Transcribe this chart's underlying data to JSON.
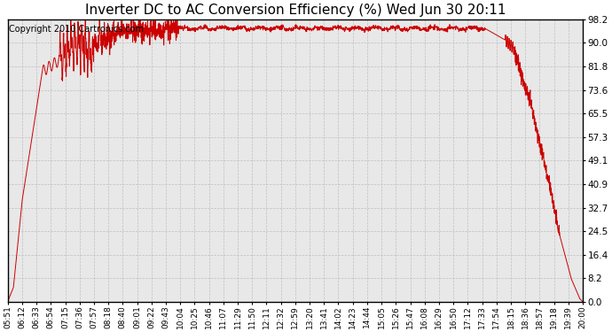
{
  "title": "Inverter DC to AC Conversion Efficiency (%) Wed Jun 30 20:11",
  "copyright": "Copyright 2010 Cartronics.com",
  "line_color": "#cc0000",
  "bg_color": "#ffffff",
  "plot_bg_color": "#e8e8e8",
  "grid_color": "#aaaaaa",
  "yticks": [
    0.0,
    8.2,
    16.4,
    24.5,
    32.7,
    40.9,
    49.1,
    57.3,
    65.5,
    73.6,
    81.8,
    90.0,
    98.2
  ],
  "ylim": [
    0.0,
    98.2
  ],
  "xtick_labels": [
    "05:51",
    "06:12",
    "06:33",
    "06:54",
    "07:15",
    "07:36",
    "07:57",
    "08:18",
    "08:40",
    "09:01",
    "09:22",
    "09:43",
    "10:04",
    "10:25",
    "10:46",
    "11:07",
    "11:29",
    "11:50",
    "12:11",
    "12:32",
    "12:59",
    "13:20",
    "13:41",
    "14:02",
    "14:23",
    "14:44",
    "15:05",
    "15:26",
    "15:47",
    "16:08",
    "16:29",
    "16:50",
    "17:12",
    "17:33",
    "17:54",
    "18:15",
    "18:36",
    "18:57",
    "19:18",
    "19:39",
    "20:00"
  ],
  "title_fontsize": 11,
  "copyright_fontsize": 7,
  "tick_fontsize": 6.5,
  "ytick_fontsize": 7.5
}
